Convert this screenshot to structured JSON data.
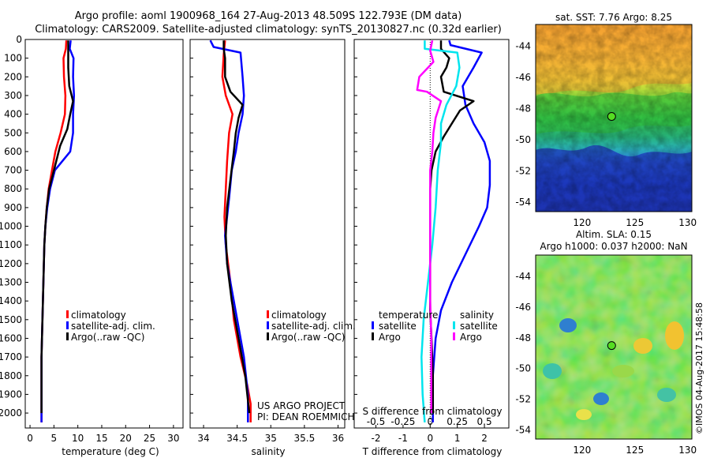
{
  "title": {
    "line1": "Argo profile: aoml 1900968_164 27-Aug-2013 48.509S 122.793E (DM data)",
    "line2": "Climatology: CARS2009. Satellite-adjusted climatology: synTS_20130827.nc (0.32d earlier)"
  },
  "credits": {
    "project": "US ARGO PROJECT",
    "pi": "PI: DEAN ROEMMICH",
    "imos": "©IMOS 04-Aug-2017 15:48:58"
  },
  "colors": {
    "climatology": "#ff0000",
    "satellite": "#0000ff",
    "argo": "#000000",
    "salinity_satellite": "#00e5ee",
    "salinity_argo": "#ff00ff"
  },
  "chart_data": [
    {
      "id": "temperature",
      "type": "line",
      "xlabel": "temperature (deg C)",
      "ylabel": "",
      "xlim": [
        -1,
        32
      ],
      "ylim": [
        2080,
        0
      ],
      "xticks": [
        "0",
        "5",
        "10",
        "15",
        "20",
        "25",
        "30"
      ],
      "xtick_values": [
        0,
        5,
        10,
        15,
        20,
        25,
        30
      ],
      "yticks": [
        "0",
        "100",
        "200",
        "300",
        "400",
        "500",
        "600",
        "700",
        "800",
        "900",
        "1000",
        "1100",
        "1200",
        "1300",
        "1400",
        "1500",
        "1600",
        "1700",
        "1800",
        "1900",
        "2000"
      ],
      "ytick_values": [
        0,
        100,
        200,
        300,
        400,
        500,
        600,
        700,
        800,
        900,
        1000,
        1100,
        1200,
        1300,
        1400,
        1500,
        1600,
        1700,
        1800,
        1900,
        2000
      ],
      "legend": [
        "climatology",
        "satellite-adj. clim.",
        "Argo(..raw -QC)"
      ],
      "series": [
        {
          "name": "climatology",
          "color": "#ff0000",
          "points": [
            [
              7.6,
              5
            ],
            [
              7.5,
              50
            ],
            [
              7.0,
              100
            ],
            [
              7.1,
              200
            ],
            [
              7.4,
              300
            ],
            [
              7.3,
              400
            ],
            [
              6.4,
              500
            ],
            [
              5.3,
              600
            ],
            [
              4.6,
              700
            ],
            [
              3.9,
              800
            ],
            [
              3.5,
              900
            ],
            [
              3.2,
              1000
            ],
            [
              3.0,
              1100
            ],
            [
              2.9,
              1200
            ],
            [
              2.8,
              1300
            ],
            [
              2.7,
              1400
            ],
            [
              2.6,
              1500
            ],
            [
              2.5,
              1600
            ],
            [
              2.4,
              1700
            ],
            [
              2.4,
              1800
            ],
            [
              2.4,
              1900
            ],
            [
              2.4,
              2050
            ]
          ]
        },
        {
          "name": "satellite-adj. clim.",
          "color": "#0000ff",
          "points": [
            [
              8.5,
              5
            ],
            [
              8.3,
              50
            ],
            [
              9.1,
              100
            ],
            [
              9.0,
              200
            ],
            [
              9.2,
              300
            ],
            [
              9.0,
              400
            ],
            [
              9.0,
              500
            ],
            [
              8.4,
              600
            ],
            [
              5.2,
              700
            ],
            [
              4.2,
              800
            ],
            [
              3.6,
              900
            ],
            [
              3.2,
              1000
            ],
            [
              3.0,
              1100
            ],
            [
              2.9,
              1200
            ],
            [
              2.8,
              1300
            ],
            [
              2.7,
              1400
            ],
            [
              2.6,
              1500
            ],
            [
              2.5,
              1600
            ],
            [
              2.4,
              1700
            ],
            [
              2.4,
              1800
            ],
            [
              2.4,
              1900
            ],
            [
              2.4,
              2050
            ]
          ]
        },
        {
          "name": "Argo(..raw -QC)",
          "color": "#000000",
          "points": [
            [
              8.0,
              5
            ],
            [
              8.0,
              60
            ],
            [
              8.0,
              150
            ],
            [
              8.2,
              250
            ],
            [
              9.0,
              330
            ],
            [
              8.4,
              400
            ],
            [
              7.8,
              480
            ],
            [
              6.3,
              570
            ],
            [
              5.0,
              700
            ],
            [
              4.0,
              800
            ],
            [
              3.5,
              900
            ],
            [
              3.2,
              1000
            ],
            [
              3.0,
              1100
            ],
            [
              2.9,
              1200
            ],
            [
              2.8,
              1300
            ],
            [
              2.7,
              1400
            ],
            [
              2.6,
              1500
            ],
            [
              2.5,
              1600
            ],
            [
              2.4,
              1700
            ],
            [
              2.4,
              1800
            ],
            [
              2.4,
              1900
            ],
            [
              2.4,
              2000
            ]
          ]
        }
      ]
    },
    {
      "id": "salinity",
      "type": "line",
      "xlabel": "salinity",
      "xlim": [
        33.8,
        36.1
      ],
      "ylim": [
        2080,
        0
      ],
      "xticks": [
        "34",
        "34.5",
        "35",
        "35.5",
        "36"
      ],
      "xtick_values": [
        34,
        34.5,
        35,
        35.5,
        36
      ],
      "legend": [
        "climatology",
        "satellite-adj. clim.",
        "Argo(..raw -QC)"
      ],
      "series": [
        {
          "name": "climatology",
          "color": "#ff0000",
          "points": [
            [
              34.32,
              5
            ],
            [
              34.3,
              80
            ],
            [
              34.28,
              200
            ],
            [
              34.33,
              300
            ],
            [
              34.43,
              400
            ],
            [
              34.38,
              500
            ],
            [
              34.35,
              650
            ],
            [
              34.33,
              800
            ],
            [
              34.31,
              950
            ],
            [
              34.33,
              1100
            ],
            [
              34.4,
              1300
            ],
            [
              34.45,
              1500
            ],
            [
              34.55,
              1700
            ],
            [
              34.65,
              1850
            ],
            [
              34.7,
              1950
            ],
            [
              34.7,
              2050
            ]
          ]
        },
        {
          "name": "satellite-adj. clim.",
          "color": "#0000ff",
          "points": [
            [
              34.1,
              5
            ],
            [
              34.15,
              40
            ],
            [
              34.55,
              70
            ],
            [
              34.58,
              200
            ],
            [
              34.6,
              300
            ],
            [
              34.58,
              400
            ],
            [
              34.52,
              500
            ],
            [
              34.48,
              600
            ],
            [
              34.42,
              700
            ],
            [
              34.38,
              850
            ],
            [
              34.32,
              1050
            ],
            [
              34.35,
              1200
            ],
            [
              34.4,
              1300
            ],
            [
              34.5,
              1500
            ],
            [
              34.6,
              1700
            ],
            [
              34.66,
              1900
            ],
            [
              34.66,
              2050
            ]
          ]
        },
        {
          "name": "Argo(..raw -QC)",
          "color": "#000000",
          "points": [
            [
              34.3,
              5
            ],
            [
              34.3,
              50
            ],
            [
              34.32,
              100
            ],
            [
              34.32,
              200
            ],
            [
              34.4,
              280
            ],
            [
              34.58,
              350
            ],
            [
              34.52,
              420
            ],
            [
              34.48,
              500
            ],
            [
              34.45,
              600
            ],
            [
              34.4,
              750
            ],
            [
              34.35,
              900
            ],
            [
              34.33,
              1050
            ],
            [
              34.35,
              1200
            ],
            [
              34.42,
              1400
            ],
            [
              34.52,
              1600
            ],
            [
              34.62,
              1800
            ],
            [
              34.68,
              2000
            ]
          ]
        }
      ]
    },
    {
      "id": "difference",
      "type": "line",
      "xlabel": "T difference from climatology",
      "xlabel_top": "S difference from climatology",
      "xlim": [
        -2.8,
        2.9
      ],
      "ylim": [
        2080,
        0
      ],
      "xticks_bottom": [
        "-2",
        "-1",
        "0",
        "1",
        "2"
      ],
      "xtick_values_bottom": [
        -2,
        -1,
        0,
        1,
        2
      ],
      "xticks_top": [
        "-0.5",
        "-0.25",
        "0",
        "0.25",
        "0.5"
      ],
      "xtick_values_top": [
        -0.5,
        -0.25,
        0,
        0.25,
        0.5
      ],
      "legend_left_title": "temperature",
      "legend_right_title": "salinity",
      "legend": [
        "satellite",
        "Argo",
        "satellite",
        "Argo"
      ],
      "series_T": [
        {
          "name": "satellite",
          "color": "#0000ff",
          "points": [
            [
              0.7,
              5
            ],
            [
              0.75,
              30
            ],
            [
              1.9,
              70
            ],
            [
              1.6,
              150
            ],
            [
              1.2,
              250
            ],
            [
              1.3,
              350
            ],
            [
              1.6,
              450
            ],
            [
              2.0,
              550
            ],
            [
              2.2,
              650
            ],
            [
              2.2,
              780
            ],
            [
              2.1,
              900
            ],
            [
              1.8,
              1000
            ],
            [
              1.3,
              1150
            ],
            [
              0.8,
              1300
            ],
            [
              0.4,
              1450
            ],
            [
              0.2,
              1600
            ],
            [
              0.1,
              1800
            ],
            [
              0.1,
              2050
            ]
          ]
        },
        {
          "name": "Argo",
          "color": "#000000",
          "points": [
            [
              0.4,
              5
            ],
            [
              0.4,
              50
            ],
            [
              0.7,
              100
            ],
            [
              0.6,
              150
            ],
            [
              0.4,
              200
            ],
            [
              0.5,
              280
            ],
            [
              1.6,
              330
            ],
            [
              1.1,
              380
            ],
            [
              0.8,
              450
            ],
            [
              0.5,
              520
            ],
            [
              0.2,
              600
            ],
            [
              0.05,
              700
            ],
            [
              0,
              800
            ],
            [
              0,
              1300
            ],
            [
              0,
              1450
            ],
            [
              0.05,
              1600
            ],
            [
              0.1,
              1800
            ],
            [
              0.1,
              2000
            ]
          ]
        }
      ],
      "series_S": [
        {
          "name": "satellite",
          "color": "#00e5ee",
          "points": [
            [
              -0.05,
              5
            ],
            [
              -0.05,
              50
            ],
            [
              0.25,
              70
            ],
            [
              0.27,
              150
            ],
            [
              0.24,
              250
            ],
            [
              0.15,
              350
            ],
            [
              0.1,
              450
            ],
            [
              0.1,
              550
            ],
            [
              0.07,
              700
            ],
            [
              0.05,
              900
            ],
            [
              0.02,
              1100
            ],
            [
              -0.02,
              1300
            ],
            [
              -0.06,
              1500
            ],
            [
              -0.08,
              1700
            ],
            [
              -0.07,
              1900
            ],
            [
              -0.05,
              2050
            ]
          ]
        },
        {
          "name": "Argo",
          "color": "#ff00ff",
          "points": [
            [
              0.02,
              5
            ],
            [
              0.0,
              60
            ],
            [
              0.03,
              120
            ],
            [
              -0.1,
              200
            ],
            [
              -0.12,
              270
            ],
            [
              -0.03,
              280
            ],
            [
              0.1,
              330
            ],
            [
              0.05,
              420
            ],
            [
              0.03,
              500
            ],
            [
              0.02,
              600
            ],
            [
              0.0,
              700
            ],
            [
              0.0,
              1000
            ],
            [
              0.0,
              1200
            ],
            [
              0.0,
              1400
            ],
            [
              0.01,
              1600
            ],
            [
              0.01,
              1800
            ],
            [
              0.01,
              2000
            ]
          ]
        }
      ]
    },
    {
      "id": "sst-map",
      "type": "heatmap",
      "title": "sat. SST: 7.76 Argo: 8.25",
      "xlim": [
        115.6,
        130.4
      ],
      "ylim": [
        -54.6,
        -42.6
      ],
      "xticks": [
        "120",
        "125",
        "130"
      ],
      "xtick_values": [
        120,
        125,
        130
      ],
      "yticks": [
        "-44",
        "-46",
        "-48",
        "-50",
        "-52",
        "-54"
      ],
      "ytick_values": [
        -44,
        -46,
        -48,
        -50,
        -52,
        -54
      ],
      "marker": {
        "lon": 122.8,
        "lat": -48.5,
        "color": "#55dd22"
      }
    },
    {
      "id": "sla-map",
      "type": "heatmap",
      "title": "Altim. SLA: 0.15",
      "subtitle": "Argo h1000: 0.037 h2000: NaN",
      "xlim": [
        115.6,
        130.4
      ],
      "ylim": [
        -54.6,
        -42.6
      ],
      "xticks": [
        "120",
        "125",
        "130"
      ],
      "xtick_values": [
        120,
        125,
        130
      ],
      "yticks": [
        "-44",
        "-46",
        "-48",
        "-50",
        "-52",
        "-54"
      ],
      "ytick_values": [
        -44,
        -46,
        -48,
        -50,
        -52,
        -54
      ],
      "marker": {
        "lon": 122.8,
        "lat": -48.5,
        "color": "#55dd22"
      }
    }
  ]
}
